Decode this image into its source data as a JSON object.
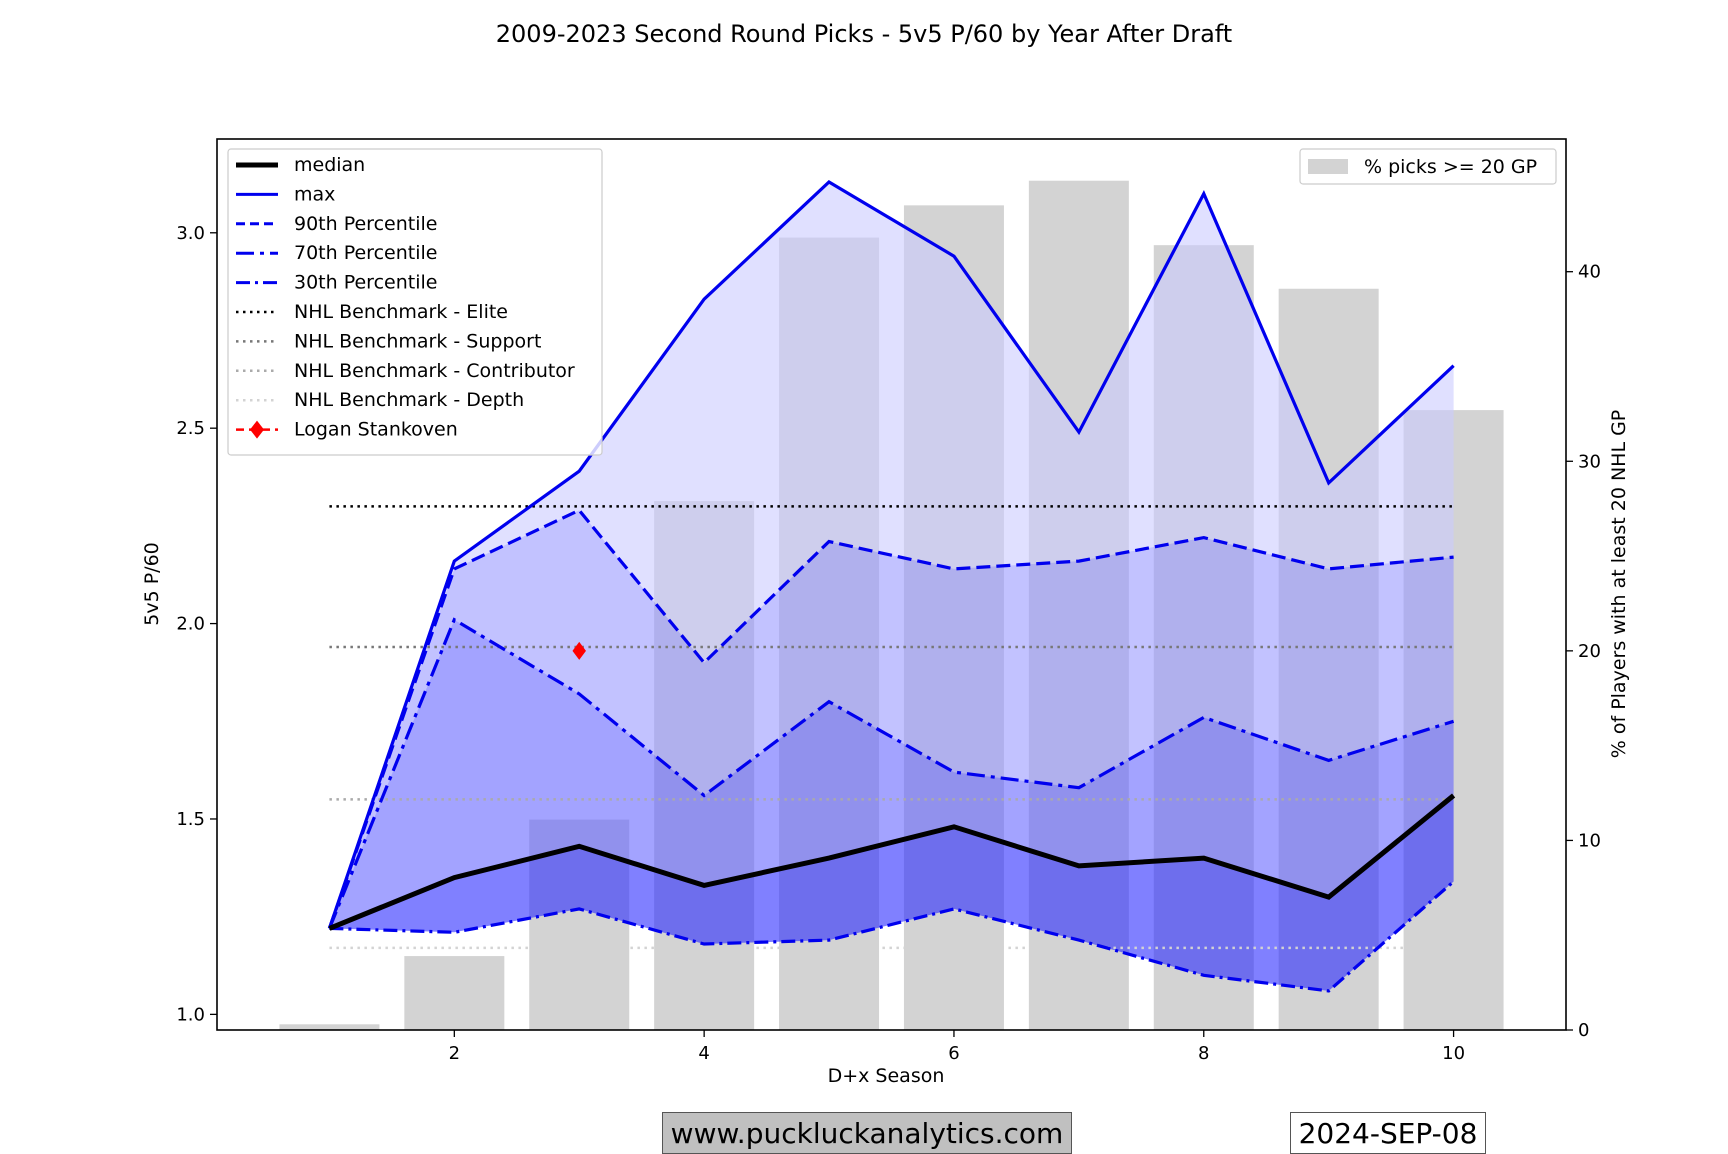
{
  "title": "2009-2023 Second Round Picks - 5v5 P/60 by Year After Draft",
  "footer": {
    "website": "www.puckluckanalytics.com",
    "date": "2024-SEP-08"
  },
  "chart_data": {
    "type": "line",
    "title": "2009-2023 Second Round Picks - 5v5 P/60 by Year After Draft",
    "xlabel": "D+x Season",
    "ylabel": "5v5 P/60",
    "y2label": "% of Players with at least 20 NHL GP",
    "xlim": [
      0.1,
      10.9
    ],
    "ylim": [
      0.96,
      3.24
    ],
    "y2lim": [
      0,
      47.0
    ],
    "xticks": [
      2,
      4,
      6,
      8,
      10
    ],
    "yticks": [
      1.0,
      1.5,
      2.0,
      2.5,
      3.0
    ],
    "yticklabels": [
      "1.0",
      "1.5",
      "2.0",
      "2.5",
      "3.0"
    ],
    "y2ticks": [
      0,
      10,
      20,
      30,
      40
    ],
    "x": [
      1,
      2,
      3,
      4,
      5,
      6,
      7,
      8,
      9,
      10
    ],
    "series": [
      {
        "name": "median",
        "style": "solid-thick",
        "color": "#000000",
        "values": [
          1.22,
          1.35,
          1.43,
          1.33,
          1.4,
          1.48,
          1.38,
          1.4,
          1.3,
          1.56
        ]
      },
      {
        "name": "max",
        "style": "solid",
        "color": "#0000ee",
        "values": [
          1.22,
          2.16,
          2.39,
          2.83,
          3.13,
          2.94,
          2.49,
          3.1,
          2.36,
          2.66
        ]
      },
      {
        "name": "90th Percentile",
        "style": "dashed",
        "color": "#0000ee",
        "values": [
          1.22,
          2.14,
          2.29,
          1.9,
          2.21,
          2.14,
          2.16,
          2.22,
          2.14,
          2.17
        ]
      },
      {
        "name": "70th Percentile",
        "style": "dashdot",
        "color": "#0000ee",
        "values": [
          1.22,
          2.01,
          1.82,
          1.56,
          1.8,
          1.62,
          1.58,
          1.76,
          1.65,
          1.75
        ]
      },
      {
        "name": "30th Percentile",
        "style": "dashdot2",
        "color": "#0000ee",
        "values": [
          1.22,
          1.21,
          1.27,
          1.18,
          1.19,
          1.27,
          1.19,
          1.1,
          1.06,
          1.34
        ]
      }
    ],
    "benchmarks": [
      {
        "name": "NHL Benchmark - Elite",
        "value": 2.3,
        "color": "#000000"
      },
      {
        "name": "NHL Benchmark - Support",
        "value": 1.94,
        "color": "#777777"
      },
      {
        "name": "NHL Benchmark - Contributor",
        "value": 1.55,
        "color": "#aaaaaa"
      },
      {
        "name": "NHL Benchmark - Depth",
        "value": 1.17,
        "color": "#d3d3d3"
      }
    ],
    "player": {
      "name": "Logan Stankoven",
      "x": 3,
      "y": 1.93,
      "color": "#ff0000"
    },
    "bars": {
      "name": "% picks >= 20 GP",
      "color": "#d3d3d3",
      "values": [
        0.3,
        3.9,
        11.1,
        27.9,
        41.8,
        43.5,
        44.8,
        41.4,
        39.1,
        32.7
      ]
    },
    "fill_colors": {
      "max_to_90": "#ccccff",
      "p90_to_70": "#9999ff",
      "p70_to_median": "#6666ff",
      "median_to_30": "#2b2bff"
    },
    "legend_left": "upper-left",
    "legend_right": "upper-right",
    "grid": false
  }
}
